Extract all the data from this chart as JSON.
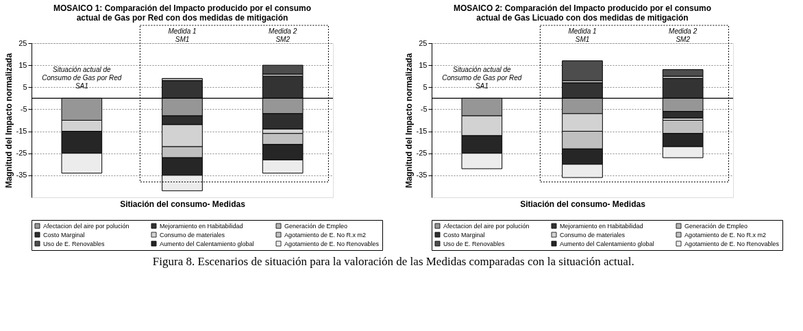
{
  "chart_data": [
    {
      "type": "bar",
      "stacked": true,
      "title": "MOSAICO 1: Comparación del Impacto producido por el consumo\nactual de Gas por Red con dos medidas de mitigación",
      "xlabel": "Sitiación del consumo- Medidas",
      "ylabel": "Magnitud del Impacto normalizada",
      "categories": [
        null,
        null,
        null
      ],
      "ylim": [
        -45,
        25
      ],
      "yticks": [
        25,
        15,
        5,
        -5,
        -15,
        -25,
        -35
      ],
      "grid": "y",
      "legend": "bottom",
      "ref_lines": [
        {
          "axis": "y",
          "value": 0,
          "color": "#000000"
        }
      ],
      "annotations": [
        "Situación actual de\nConsumo de Gas por Red\nSA1",
        "Medida 1\nSM1",
        "Medida 2\nSM2"
      ],
      "series": [
        {
          "name": "Afectacion del aire por polución",
          "color": "#969696",
          "values": [
            -10,
            -8,
            -7
          ]
        },
        {
          "name": "Mejoramiento en Habitabilidad",
          "color": "#333333",
          "values": [
            null,
            8,
            10
          ]
        },
        {
          "name": "Generación de Empleo",
          "color": "#b4b4b4",
          "values": [
            null,
            1,
            1
          ]
        },
        {
          "name": "Costo Marginal",
          "color": "#2e2e2e",
          "values": [
            null,
            -4,
            -7
          ]
        },
        {
          "name": "Consumo de materiales",
          "color": "#d2d2d2",
          "values": [
            -5,
            -10,
            -2
          ]
        },
        {
          "name": "Agotamiento de E. No R.x m2",
          "color": "#c0c0c0",
          "values": [
            null,
            -5,
            -5
          ]
        },
        {
          "name": "Uso de E. Renovables",
          "color": "#4d4d4d",
          "values": [
            null,
            null,
            4
          ]
        },
        {
          "name": "Aumento del Calentamiento global",
          "color": "#262626",
          "values": [
            -10,
            -8,
            -7
          ]
        },
        {
          "name": "Agotamiento de E. No Renovables",
          "color": "#ececec",
          "values": [
            -9,
            -7,
            -6
          ]
        }
      ]
    },
    {
      "type": "bar",
      "stacked": true,
      "title": "MOSAICO 2: Comparación del Impacto producido por el consumo\nactual de Gas Licuado con dos medidas de mitigación",
      "xlabel": "Sitiación del consumo- Medidas",
      "ylabel": "Magnitud del Impacto normalizada",
      "categories": [
        null,
        null,
        null
      ],
      "ylim": [
        -45,
        25
      ],
      "yticks": [
        25,
        15,
        5,
        -5,
        -15,
        -25,
        -35
      ],
      "grid": "y",
      "legend": "bottom",
      "ref_lines": [
        {
          "axis": "y",
          "value": 0,
          "color": "#000000"
        }
      ],
      "annotations": [
        "Situación actual de\nConsumo de Gas por Red\nSA1",
        "Medida 1\nSM1",
        "Medida 2\nSM2",
        "Figura 8. Escenarios de situación para la valoración de las Medidas comparadas con la situación actual."
      ],
      "series": [
        {
          "name": "Afectacion del aire por polución",
          "color": "#969696",
          "values": [
            -8,
            -7,
            -6
          ]
        },
        {
          "name": "Mejoramiento en Habitabilidad",
          "color": "#333333",
          "values": [
            null,
            7,
            9
          ]
        },
        {
          "name": "Generación de Empleo",
          "color": "#b4b4b4",
          "values": [
            null,
            1,
            1
          ]
        },
        {
          "name": "Costo Marginal",
          "color": "#2e2e2e",
          "values": [
            null,
            null,
            -3
          ]
        },
        {
          "name": "Consumo de materiales",
          "color": "#d2d2d2",
          "values": [
            -9,
            -8,
            -1
          ]
        },
        {
          "name": "Agotamiento de E. No R.x m2",
          "color": "#c0c0c0",
          "values": [
            null,
            -8,
            -6
          ]
        },
        {
          "name": "Uso de E. Renovables",
          "color": "#4d4d4d",
          "values": [
            null,
            9,
            3
          ]
        },
        {
          "name": "Aumento del Calentamiento global",
          "color": "#262626",
          "values": [
            -8,
            -7,
            -6
          ]
        },
        {
          "name": "Agotamiento de E. No Renovables",
          "color": "#ececec",
          "values": [
            -7,
            -6,
            -5
          ]
        }
      ]
    }
  ]
}
